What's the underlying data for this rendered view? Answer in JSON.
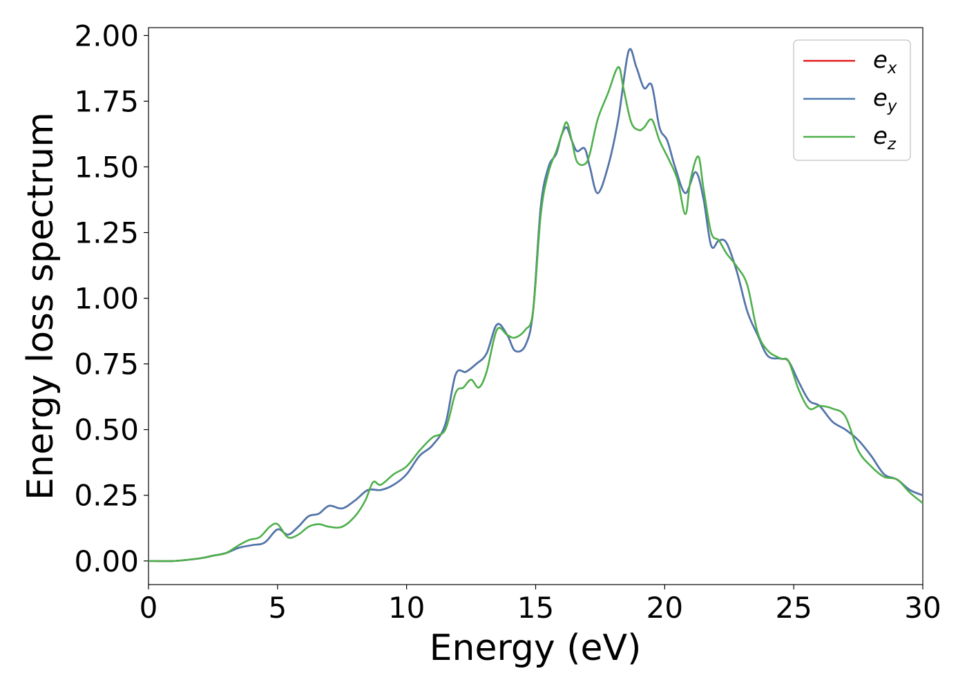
{
  "chart_data": {
    "type": "line",
    "title": "",
    "xlabel": "Energy (eV)",
    "ylabel": "Energy loss spectrum",
    "xlim": [
      0,
      30
    ],
    "ylim": [
      -0.09,
      2.03
    ],
    "xticks": [
      0,
      5,
      10,
      15,
      20,
      25,
      30
    ],
    "yticks": [
      "0.00",
      "0.25",
      "0.50",
      "0.75",
      "1.00",
      "1.25",
      "1.50",
      "1.75",
      "2.00"
    ],
    "grid": false,
    "legend_position": "top-right",
    "series": [
      {
        "name": "e",
        "subscript": "x",
        "color": "#e41a1c",
        "x": [
          0,
          1,
          2,
          2.5,
          3,
          3.5,
          4,
          4.5,
          5,
          5.4,
          5.8,
          6.2,
          6.6,
          7,
          7.5,
          8,
          8.5,
          9,
          9.5,
          10,
          10.5,
          11,
          11.5,
          11.9,
          12.3,
          12.7,
          13.1,
          13.5,
          13.9,
          14.2,
          14.6,
          14.9,
          15.2,
          15.5,
          15.8,
          16.0,
          16.2,
          16.4,
          16.6,
          16.9,
          17.1,
          17.4,
          17.8,
          18.2,
          18.6,
          18.9,
          19.2,
          19.5,
          19.8,
          20.1,
          20.4,
          20.8,
          21.2,
          21.5,
          21.8,
          22.1,
          22.4,
          22.8,
          23.2,
          23.6,
          24.0,
          24.5,
          24.8,
          25.2,
          25.6,
          26.0,
          26.5,
          27.0,
          27.5,
          28.0,
          28.5,
          29.0,
          29.5,
          30.0
        ],
        "y": [
          0.0,
          0.0,
          0.01,
          0.02,
          0.03,
          0.05,
          0.06,
          0.07,
          0.12,
          0.1,
          0.13,
          0.17,
          0.18,
          0.21,
          0.2,
          0.23,
          0.27,
          0.27,
          0.29,
          0.33,
          0.4,
          0.44,
          0.52,
          0.71,
          0.72,
          0.75,
          0.79,
          0.9,
          0.86,
          0.8,
          0.82,
          0.95,
          1.35,
          1.5,
          1.55,
          1.62,
          1.65,
          1.6,
          1.56,
          1.57,
          1.5,
          1.4,
          1.5,
          1.68,
          1.94,
          1.88,
          1.8,
          1.81,
          1.65,
          1.6,
          1.5,
          1.4,
          1.48,
          1.38,
          1.2,
          1.22,
          1.21,
          1.1,
          0.95,
          0.86,
          0.78,
          0.77,
          0.76,
          0.68,
          0.61,
          0.59,
          0.53,
          0.5,
          0.46,
          0.4,
          0.33,
          0.31,
          0.27,
          0.25
        ]
      },
      {
        "name": "e",
        "subscript": "y",
        "color": "#4a78b0",
        "x": [
          0,
          1,
          2,
          2.5,
          3,
          3.5,
          4,
          4.5,
          5,
          5.4,
          5.8,
          6.2,
          6.6,
          7,
          7.5,
          8,
          8.5,
          9,
          9.5,
          10,
          10.5,
          11,
          11.5,
          11.9,
          12.3,
          12.7,
          13.1,
          13.5,
          13.9,
          14.2,
          14.6,
          14.9,
          15.2,
          15.5,
          15.8,
          16.0,
          16.2,
          16.4,
          16.6,
          16.9,
          17.1,
          17.4,
          17.8,
          18.2,
          18.6,
          18.9,
          19.2,
          19.5,
          19.8,
          20.1,
          20.4,
          20.8,
          21.2,
          21.5,
          21.8,
          22.1,
          22.4,
          22.8,
          23.2,
          23.6,
          24.0,
          24.5,
          24.8,
          25.2,
          25.6,
          26.0,
          26.5,
          27.0,
          27.5,
          28.0,
          28.5,
          29.0,
          29.5,
          30.0
        ],
        "y": [
          0.0,
          0.0,
          0.01,
          0.02,
          0.03,
          0.05,
          0.06,
          0.07,
          0.12,
          0.1,
          0.13,
          0.17,
          0.18,
          0.21,
          0.2,
          0.23,
          0.27,
          0.27,
          0.29,
          0.33,
          0.4,
          0.44,
          0.52,
          0.71,
          0.72,
          0.75,
          0.79,
          0.9,
          0.86,
          0.8,
          0.82,
          0.95,
          1.35,
          1.5,
          1.55,
          1.62,
          1.65,
          1.6,
          1.56,
          1.57,
          1.5,
          1.4,
          1.5,
          1.68,
          1.94,
          1.88,
          1.8,
          1.81,
          1.65,
          1.6,
          1.5,
          1.4,
          1.48,
          1.38,
          1.2,
          1.22,
          1.21,
          1.1,
          0.95,
          0.86,
          0.78,
          0.77,
          0.76,
          0.68,
          0.61,
          0.59,
          0.53,
          0.5,
          0.46,
          0.4,
          0.33,
          0.31,
          0.27,
          0.25
        ]
      },
      {
        "name": "e",
        "subscript": "z",
        "color": "#4daf4a",
        "x": [
          0,
          1,
          2,
          2.5,
          3,
          3.5,
          3.9,
          4.3,
          4.7,
          5.0,
          5.4,
          5.8,
          6.2,
          6.6,
          7.0,
          7.5,
          8.0,
          8.4,
          8.7,
          9.0,
          9.5,
          10.0,
          10.5,
          11.0,
          11.5,
          11.9,
          12.2,
          12.5,
          12.8,
          13.1,
          13.5,
          13.9,
          14.2,
          14.6,
          14.9,
          15.2,
          15.5,
          15.8,
          16.0,
          16.2,
          16.4,
          16.6,
          16.9,
          17.1,
          17.4,
          17.8,
          18.2,
          18.4,
          18.7,
          19.0,
          19.2,
          19.5,
          19.8,
          20.2,
          20.5,
          20.8,
          21.0,
          21.3,
          21.5,
          21.8,
          22.1,
          22.4,
          22.8,
          23.2,
          23.6,
          24.0,
          24.5,
          24.8,
          25.2,
          25.6,
          26.0,
          26.5,
          27.0,
          27.5,
          28.0,
          28.5,
          29.0,
          29.5,
          30.0
        ],
        "y": [
          0.0,
          0.0,
          0.01,
          0.02,
          0.03,
          0.06,
          0.08,
          0.09,
          0.13,
          0.14,
          0.09,
          0.1,
          0.13,
          0.14,
          0.13,
          0.13,
          0.17,
          0.23,
          0.3,
          0.29,
          0.33,
          0.36,
          0.42,
          0.47,
          0.5,
          0.64,
          0.66,
          0.69,
          0.66,
          0.72,
          0.88,
          0.86,
          0.85,
          0.88,
          0.95,
          1.32,
          1.48,
          1.56,
          1.62,
          1.67,
          1.6,
          1.52,
          1.51,
          1.55,
          1.68,
          1.78,
          1.88,
          1.8,
          1.67,
          1.64,
          1.65,
          1.68,
          1.6,
          1.52,
          1.45,
          1.32,
          1.45,
          1.54,
          1.42,
          1.25,
          1.22,
          1.17,
          1.12,
          1.05,
          0.87,
          0.8,
          0.77,
          0.76,
          0.65,
          0.58,
          0.59,
          0.58,
          0.55,
          0.42,
          0.36,
          0.32,
          0.31,
          0.26,
          0.22
        ]
      }
    ]
  }
}
